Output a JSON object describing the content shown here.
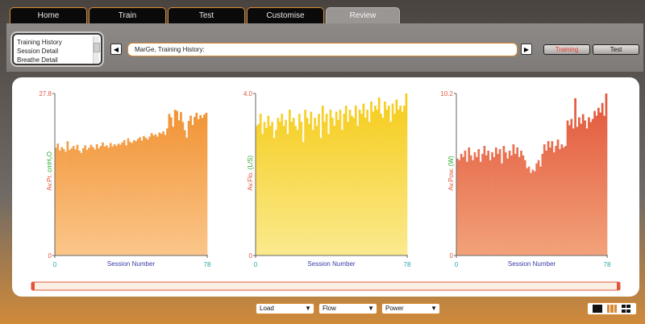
{
  "tabs": [
    "Home",
    "Train",
    "Test",
    "Customise",
    "Review"
  ],
  "active_tab": "Review",
  "history_list": [
    "Training History",
    "Session Detail",
    "Breathe Detail"
  ],
  "path": "MarGe, Training History:",
  "buttons": {
    "training": "Training",
    "test": "Test"
  },
  "colors": {
    "accent": "#d78a33",
    "training_text": "#e23b2e"
  },
  "icons": [
    "prev-arrow-icon",
    "next-arrow-icon",
    "view-single-icon",
    "view-bars-icon",
    "view-grid-icon"
  ],
  "dropdowns": [
    "Load",
    "Flow",
    "Power"
  ],
  "chart_data": [
    {
      "type": "bar",
      "ylabel": "Av.Pr.",
      "yunit": "cmH₂O",
      "xlabel": "Session Number",
      "xlim": [
        0,
        78
      ],
      "ylim": [
        0,
        27.8
      ],
      "ytick_labels": [
        "27.8",
        "0"
      ],
      "xtick_labels": [
        "0",
        "78"
      ],
      "colors": [
        "#f08d2a",
        "#fbc68a"
      ],
      "values": [
        18.5,
        19.2,
        18.0,
        18.6,
        18.3,
        17.8,
        19.6,
        18.1,
        18.4,
        18.8,
        18.2,
        19.0,
        18.0,
        17.6,
        18.4,
        18.9,
        18.1,
        18.5,
        19.0,
        18.6,
        18.2,
        19.1,
        18.4,
        18.8,
        19.4,
        18.7,
        18.9,
        18.5,
        19.3,
        18.7,
        19.1,
        18.8,
        19.2,
        19.0,
        19.4,
        19.8,
        18.9,
        20.1,
        19.5,
        19.3,
        19.8,
        19.6,
        20.0,
        20.3,
        19.7,
        20.5,
        20.2,
        19.9,
        20.4,
        21.0,
        20.6,
        20.8,
        20.4,
        21.1,
        20.9,
        21.3,
        20.7,
        21.8,
        24.3,
        23.7,
        22.1,
        25.0,
        24.8,
        23.2,
        24.6,
        22.9,
        21.5,
        20.2,
        23.1,
        24.0,
        22.4,
        23.8,
        24.5,
        23.4,
        24.1,
        23.6,
        24.2,
        24.5
      ]
    },
    {
      "type": "bar",
      "ylabel": "Av.Flo.",
      "yunit": "(L/S)",
      "xlabel": "Session Number",
      "xlim": [
        0,
        78
      ],
      "ylim": [
        0,
        4.0
      ],
      "ytick_labels": [
        "4.0",
        "0"
      ],
      "xtick_labels": [
        "0",
        "78"
      ],
      "colors": [
        "#f5cb18",
        "#fbea8e"
      ],
      "values": [
        3.2,
        3.25,
        3.5,
        3.0,
        3.3,
        3.15,
        3.45,
        3.2,
        3.3,
        2.9,
        3.1,
        3.4,
        3.3,
        3.5,
        3.2,
        3.35,
        3.0,
        3.6,
        3.3,
        3.4,
        3.2,
        3.1,
        3.5,
        3.3,
        2.8,
        3.6,
        3.4,
        3.25,
        3.55,
        3.1,
        3.4,
        3.2,
        3.5,
        2.9,
        3.7,
        3.3,
        3.5,
        3.0,
        3.6,
        3.4,
        3.2,
        3.55,
        3.35,
        3.6,
        3.1,
        3.5,
        3.7,
        3.3,
        3.6,
        3.45,
        3.4,
        3.7,
        3.2,
        3.6,
        3.5,
        3.75,
        3.4,
        3.6,
        3.3,
        3.8,
        3.55,
        3.7,
        3.6,
        3.9,
        3.5,
        3.4,
        3.8,
        3.6,
        3.7,
        3.3,
        3.75,
        3.5,
        3.85,
        3.6,
        3.7,
        3.55,
        3.7,
        4.0
      ]
    },
    {
      "type": "bar",
      "ylabel": "Av.Pow.",
      "yunit": "(W)",
      "xlabel": "Session Number",
      "xlim": [
        0,
        78
      ],
      "ylim": [
        0,
        10.2
      ],
      "ytick_labels": [
        "10.2",
        "0"
      ],
      "xtick_labels": [
        "0",
        "78"
      ],
      "colors": [
        "#e2553a",
        "#f2a27a"
      ],
      "values": [
        6.1,
        6.0,
        6.4,
        6.2,
        6.6,
        5.9,
        6.8,
        6.3,
        6.0,
        6.5,
        6.2,
        6.7,
        5.9,
        6.4,
        6.9,
        6.3,
        6.6,
        6.0,
        6.5,
        6.2,
        6.8,
        6.4,
        6.7,
        5.8,
        6.9,
        6.5,
        6.1,
        6.6,
        6.3,
        7.0,
        6.4,
        6.8,
        6.2,
        6.6,
        6.3,
        6.0,
        5.5,
        5.6,
        5.2,
        5.4,
        5.3,
        5.8,
        6.0,
        5.6,
        6.4,
        7.0,
        6.6,
        7.2,
        6.8,
        7.2,
        6.5,
        6.9,
        7.3,
        6.7,
        7.0,
        6.8,
        6.9,
        8.5,
        8.2,
        8.6,
        8.0,
        9.9,
        8.1,
        8.7,
        8.3,
        8.9,
        8.5,
        8.0,
        8.7,
        8.4,
        8.6,
        9.1,
        8.8,
        9.3,
        9.0,
        9.6,
        8.8,
        10.2
      ]
    }
  ]
}
